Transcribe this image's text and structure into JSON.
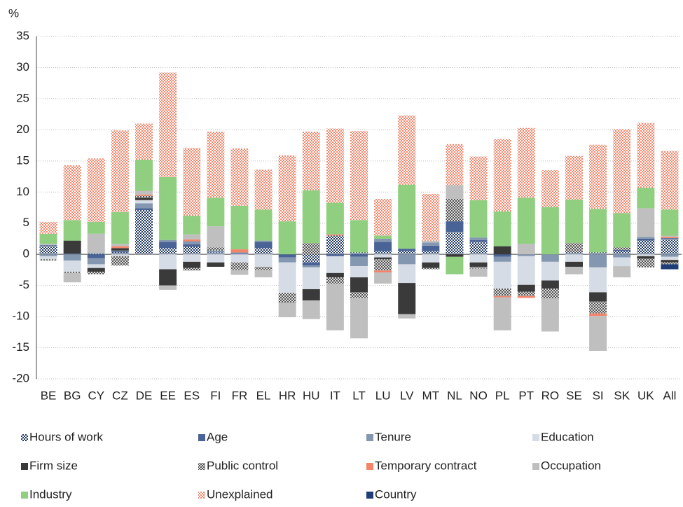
{
  "chart_data": {
    "type": "stacked_bar",
    "y_label": "%",
    "categories": [
      "BE",
      "BG",
      "CY",
      "CZ",
      "DE",
      "EE",
      "ES",
      "FI",
      "FR",
      "EL",
      "HR",
      "HU",
      "IT",
      "LT",
      "LU",
      "LV",
      "MT",
      "NL",
      "NO",
      "PL",
      "PT",
      "RO",
      "SE",
      "SI",
      "SK",
      "UK",
      "All"
    ],
    "ylim": [
      -20,
      35
    ],
    "yticks": [
      -20,
      -15,
      -10,
      -5,
      0,
      5,
      10,
      15,
      20,
      25,
      30,
      35
    ],
    "grid": true,
    "series": [
      {
        "name": "Hours of work",
        "color": "#1f3864",
        "pattern": "dots",
        "values": [
          1.4,
          0,
          0.2,
          0.3,
          7.1,
          1.0,
          1.2,
          0.3,
          0,
          1.0,
          0,
          -1.3,
          3.0,
          0.3,
          0.5,
          0.5,
          0.5,
          3.6,
          2.0,
          0,
          0,
          0,
          0.3,
          0.3,
          0.5,
          2.2,
          2.5
        ]
      },
      {
        "name": "Age",
        "color": "#4a6396",
        "values": [
          0.1,
          0.1,
          -0.6,
          0.2,
          0.3,
          1.0,
          0.4,
          0,
          0.1,
          1.0,
          -0.5,
          -0.5,
          -0.3,
          -0.4,
          1.5,
          0.4,
          0.9,
          1.7,
          0.3,
          -0.4,
          0,
          0,
          0,
          0,
          0.2,
          0.3,
          0.1
        ]
      },
      {
        "name": "Tenure",
        "color": "#8497b0",
        "values": [
          -0.3,
          -1.0,
          -1.0,
          0.1,
          0.8,
          0.3,
          0.5,
          0.3,
          0.2,
          0.2,
          -0.8,
          -0.3,
          0,
          -1.5,
          0.5,
          -1.6,
          0.5,
          0,
          0.4,
          -0.8,
          -0.3,
          -1.2,
          0,
          -2.1,
          -0.5,
          0.3,
          -0.4
        ]
      },
      {
        "name": "Education",
        "color": "#d6dce5",
        "values": [
          -0.5,
          -1.8,
          -0.6,
          -0.3,
          0.5,
          -2.4,
          -1.2,
          -1.3,
          -1.3,
          -2.0,
          -4.9,
          -3.5,
          -2.7,
          -1.8,
          -0.5,
          -3.0,
          -1.3,
          0,
          -1.3,
          -4.3,
          -4.6,
          -3.0,
          -1.2,
          -4.0,
          -1.4,
          -0.3,
          -0.5
        ]
      },
      {
        "name": "Firm size",
        "color": "#3a3a3a",
        "values": [
          0,
          2.1,
          -0.6,
          0.4,
          0.4,
          -2.6,
          -1.0,
          -0.7,
          0,
          0,
          0,
          -1.8,
          -0.7,
          -2.4,
          -0.3,
          -5.0,
          -0.9,
          -0.4,
          -0.7,
          1.3,
          -1.1,
          -1.3,
          -0.8,
          -1.5,
          0,
          -0.4,
          -0.4
        ]
      },
      {
        "name": "Public control",
        "color": "#555555",
        "pattern": "checks",
        "values": [
          -0.2,
          -0.2,
          -0.4,
          -1.5,
          0.3,
          0,
          -0.4,
          0.5,
          -1.2,
          -0.5,
          -1.6,
          1.8,
          -1.0,
          -0.9,
          -1.8,
          0,
          -0.2,
          3.6,
          -0.3,
          -1.2,
          -0.7,
          -1.6,
          1.5,
          -1.9,
          0.4,
          -1.4,
          -0.3
        ]
      },
      {
        "name": "Temporary contract",
        "color": "#f4846a",
        "values": [
          0,
          0,
          0,
          0.3,
          0.2,
          0,
          0.3,
          0,
          0.5,
          0,
          0,
          0,
          0.2,
          0,
          -0.3,
          0,
          0,
          0,
          0,
          -0.2,
          -0.3,
          0,
          0,
          -0.4,
          0,
          0,
          0.2
        ]
      },
      {
        "name": "Occupation",
        "color": "#bfbfbf",
        "values": [
          0.2,
          -1.5,
          3.1,
          0.4,
          0.6,
          -0.7,
          0.8,
          3.4,
          -0.8,
          -1.2,
          -2.3,
          -3.0,
          -7.5,
          -6.5,
          -1.8,
          -0.7,
          0.3,
          2.2,
          -1.3,
          -5.3,
          1.7,
          -5.3,
          -1.2,
          -5.6,
          -1.8,
          4.6,
          0.2
        ]
      },
      {
        "name": "Industry",
        "color": "#8fcf7f",
        "values": [
          1.6,
          3.3,
          1.9,
          5.1,
          5.0,
          10.1,
          3.0,
          4.6,
          7.0,
          5.0,
          5.3,
          8.5,
          5.1,
          5.2,
          0.5,
          10.3,
          0,
          -2.8,
          6.0,
          5.6,
          7.4,
          7.6,
          7.0,
          7.0,
          5.5,
          3.3,
          4.2
        ]
      },
      {
        "name": "Unexplained",
        "color": "#f4846a",
        "pattern": "dots",
        "values": [
          1.9,
          8.8,
          10.2,
          13.1,
          5.8,
          16.8,
          10.9,
          10.6,
          9.2,
          6.4,
          10.6,
          9.4,
          11.9,
          14.3,
          5.9,
          11.1,
          7.5,
          6.6,
          7.0,
          11.6,
          11.2,
          5.9,
          7.0,
          10.3,
          13.5,
          10.4,
          9.4
        ]
      },
      {
        "name": "Country",
        "color": "#1f3e78",
        "values": [
          0,
          0,
          0,
          0,
          0,
          0,
          0,
          0,
          0,
          0,
          0,
          0,
          0,
          0,
          0,
          0,
          0,
          0,
          0,
          0,
          0,
          0,
          0,
          0,
          0,
          0,
          -0.8
        ]
      }
    ]
  }
}
